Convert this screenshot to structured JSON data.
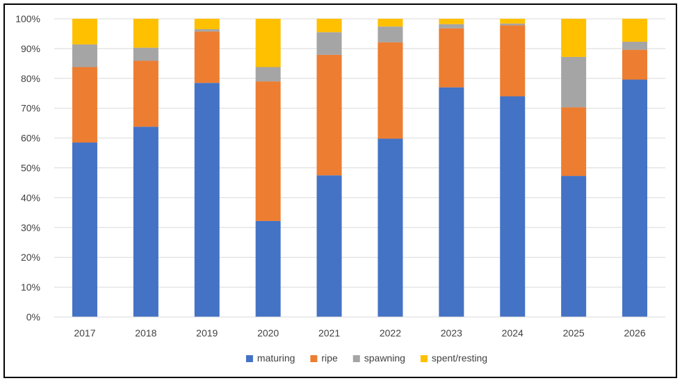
{
  "chart_data": {
    "type": "bar",
    "stacked": true,
    "percent": true,
    "title": "",
    "xlabel": "",
    "ylabel": "",
    "ylim": [
      0,
      100
    ],
    "y_ticks": [
      "0%",
      "10%",
      "20%",
      "30%",
      "40%",
      "50%",
      "60%",
      "70%",
      "80%",
      "90%",
      "100%"
    ],
    "grid": true,
    "legend_position": "bottom",
    "categories": [
      "2017",
      "2018",
      "2019",
      "2020",
      "2021",
      "2022",
      "2023",
      "2024",
      "2025",
      "2026"
    ],
    "series": [
      {
        "name": "maturing",
        "color": "#4472C4",
        "values": [
          58.5,
          63.8,
          78.5,
          32.2,
          47.5,
          59.8,
          77.0,
          74.0,
          47.3,
          79.6
        ]
      },
      {
        "name": "ripe",
        "color": "#ED7D31",
        "values": [
          25.3,
          22.1,
          17.2,
          46.8,
          40.4,
          32.3,
          19.8,
          23.8,
          23.0,
          10.0
        ]
      },
      {
        "name": "spawning",
        "color": "#A5A5A5",
        "values": [
          7.6,
          4.4,
          0.8,
          4.8,
          7.6,
          5.3,
          1.4,
          0.6,
          16.9,
          2.7
        ]
      },
      {
        "name": "spent/resting",
        "color": "#FFC000",
        "values": [
          8.6,
          9.7,
          3.5,
          16.2,
          4.5,
          2.6,
          1.8,
          1.6,
          12.8,
          7.7
        ]
      }
    ]
  }
}
